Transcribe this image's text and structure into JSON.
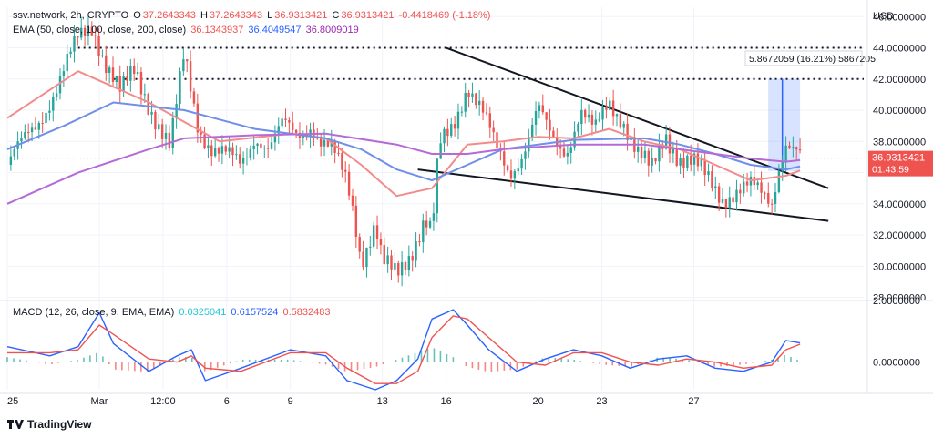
{
  "header": {
    "symbol": "ssv.network, 2h, CRYPTO",
    "open_label": "O",
    "open": "37.2643343",
    "high_label": "H",
    "high": "37.2643343",
    "low_label": "L",
    "low": "36.9313421",
    "close_label": "C",
    "close": "36.9313421",
    "change": "-0.4418469 (-1.18%)"
  },
  "ema_legend": {
    "label": "EMA (50, close, 100, close, 200, close)",
    "ema50": "36.1343937",
    "ema100": "36.4049547",
    "ema200": "36.8009019"
  },
  "macd_legend": {
    "label": "MACD (12, 26, close, 9, EMA, EMA)",
    "histogram": "0.0325041",
    "macd": "0.6157524",
    "signal": "0.5832483"
  },
  "currency": "USD",
  "current_price": "36.9313421",
  "countdown": "01:43:59",
  "measure_label": "5.8672059 (16.21%) 5867205",
  "brand": "TradingView",
  "colors": {
    "up": "#26a69a",
    "down": "#ef5350",
    "ema50": "#f28b8b",
    "ema100": "#6f8fe8",
    "ema200": "#b56bd6",
    "macd": "#2962ff",
    "signal": "#ef5350"
  },
  "chart_data": [
    {
      "type": "candlestick",
      "title": "",
      "xlabel": "",
      "ylabel": "",
      "x_ticks": [
        "25",
        "Mar",
        "12:00",
        "6",
        "9",
        "13",
        "16",
        "20",
        "23",
        "27"
      ],
      "y_ticks": [
        "28.0000000",
        "30.0000000",
        "32.0000000",
        "34.0000000",
        "36.0000000",
        "38.0000000",
        "40.0000000",
        "42.0000000",
        "44.0000000",
        "46.0000000"
      ],
      "ylim": [
        27.8,
        46.6
      ],
      "close_path": [
        [
          0,
          36.5
        ],
        [
          4,
          39
        ],
        [
          7,
          41.5
        ],
        [
          10,
          44.5
        ],
        [
          12,
          45.5
        ],
        [
          14,
          43
        ],
        [
          16,
          41
        ],
        [
          18,
          42.5
        ],
        [
          20,
          40.5
        ],
        [
          21,
          39.5
        ],
        [
          23,
          37.5
        ],
        [
          25,
          43.5
        ],
        [
          27,
          39
        ],
        [
          29,
          37.5
        ],
        [
          31,
          37
        ],
        [
          33,
          36.5
        ],
        [
          35,
          38.5
        ],
        [
          37,
          37.5
        ],
        [
          39,
          39
        ],
        [
          41,
          38.5
        ],
        [
          43,
          39.2
        ],
        [
          44,
          38
        ],
        [
          46,
          37.2
        ],
        [
          48,
          35.5
        ],
        [
          49,
          33.5
        ],
        [
          50,
          30.5
        ],
        [
          52,
          32.5
        ],
        [
          53,
          30
        ],
        [
          55,
          29.5
        ],
        [
          57,
          31
        ],
        [
          59,
          33
        ],
        [
          60,
          32
        ],
        [
          61,
          37.5
        ],
        [
          63,
          39
        ],
        [
          65,
          41.8
        ],
        [
          67,
          40
        ],
        [
          69,
          37.5
        ],
        [
          71,
          36
        ],
        [
          73,
          37.5
        ],
        [
          75,
          40
        ],
        [
          77,
          38
        ],
        [
          79,
          37.5
        ],
        [
          81,
          40
        ],
        [
          83,
          38.5
        ],
        [
          85,
          40.5
        ],
        [
          87,
          39.5
        ],
        [
          89,
          37.2
        ],
        [
          91,
          36
        ],
        [
          93,
          38.5
        ],
        [
          95,
          37
        ],
        [
          97,
          36.5
        ],
        [
          99,
          35.5
        ],
        [
          101,
          34.5
        ],
        [
          103,
          34.8
        ],
        [
          105,
          35
        ],
        [
          107,
          34.5
        ],
        [
          108,
          34.2
        ],
        [
          109,
          36.5
        ],
        [
          110,
          38
        ],
        [
          111,
          37.5
        ],
        [
          112,
          36.93
        ]
      ],
      "series": [
        {
          "name": "EMA 50",
          "values": [
            [
              0,
              39.5
            ],
            [
              10,
              42.5
            ],
            [
              20,
              40.5
            ],
            [
              30,
              38
            ],
            [
              40,
              38.5
            ],
            [
              45,
              38.2
            ],
            [
              50,
              36.5
            ],
            [
              55,
              34.5
            ],
            [
              60,
              35
            ],
            [
              65,
              37.8
            ],
            [
              70,
              38
            ],
            [
              75,
              38.3
            ],
            [
              80,
              38.2
            ],
            [
              85,
              38.8
            ],
            [
              90,
              38
            ],
            [
              95,
              37.5
            ],
            [
              100,
              36.5
            ],
            [
              105,
              35.5
            ],
            [
              110,
              35.8
            ],
            [
              112,
              36.13
            ]
          ]
        },
        {
          "name": "EMA 100",
          "values": [
            [
              0,
              37.5
            ],
            [
              8,
              39
            ],
            [
              15,
              40.5
            ],
            [
              25,
              40
            ],
            [
              35,
              38.8
            ],
            [
              45,
              38.2
            ],
            [
              50,
              37.5
            ],
            [
              55,
              36.2
            ],
            [
              60,
              35.5
            ],
            [
              65,
              36.5
            ],
            [
              70,
              37.5
            ],
            [
              80,
              38.1
            ],
            [
              90,
              38.2
            ],
            [
              95,
              37.8
            ],
            [
              100,
              37.2
            ],
            [
              105,
              36.5
            ],
            [
              110,
              36.2
            ],
            [
              112,
              36.4
            ]
          ]
        },
        {
          "name": "EMA 200",
          "values": [
            [
              0,
              34
            ],
            [
              10,
              36
            ],
            [
              20,
              37.5
            ],
            [
              25,
              38.2
            ],
            [
              35,
              38.4
            ],
            [
              45,
              38.5
            ],
            [
              55,
              37.8
            ],
            [
              60,
              37.2
            ],
            [
              65,
              37.2
            ],
            [
              70,
              37.5
            ],
            [
              80,
              37.8
            ],
            [
              90,
              37.8
            ],
            [
              95,
              37.5
            ],
            [
              100,
              37.2
            ],
            [
              105,
              36.9
            ],
            [
              110,
              36.7
            ],
            [
              112,
              36.8
            ]
          ]
        }
      ],
      "annotations": {
        "horizontal_levels": [
          44.0,
          42.0
        ],
        "wedge_upper": [
          [
            62,
            44
          ],
          [
            116,
            35
          ]
        ],
        "wedge_lower": [
          [
            58,
            36.2
          ],
          [
            116,
            32.9
          ]
        ],
        "measure_range": [
          36.1,
          42.0
        ]
      }
    },
    {
      "type": "line",
      "title": "",
      "y_ticks": [
        "0.0000000",
        "2.0000000"
      ],
      "ylim": [
        -0.9,
        2.0
      ],
      "series": [
        {
          "name": "MACD",
          "values": [
            [
              0,
              0.5
            ],
            [
              6,
              0.2
            ],
            [
              10,
              0.5
            ],
            [
              13,
              1.6
            ],
            [
              15,
              0.6
            ],
            [
              20,
              -0.3
            ],
            [
              24,
              0.2
            ],
            [
              26,
              0.4
            ],
            [
              28,
              -0.6
            ],
            [
              33,
              -0.2
            ],
            [
              40,
              0.4
            ],
            [
              45,
              0.2
            ],
            [
              48,
              -0.6
            ],
            [
              52,
              -0.9
            ],
            [
              55,
              -0.6
            ],
            [
              58,
              0.1
            ],
            [
              60,
              1.4
            ],
            [
              63,
              1.7
            ],
            [
              65,
              1.2
            ],
            [
              68,
              0.4
            ],
            [
              72,
              -0.3
            ],
            [
              76,
              0.1
            ],
            [
              80,
              0.4
            ],
            [
              84,
              0.2
            ],
            [
              88,
              -0.2
            ],
            [
              92,
              0.1
            ],
            [
              96,
              0.2
            ],
            [
              100,
              -0.2
            ],
            [
              104,
              -0.3
            ],
            [
              108,
              0.0
            ],
            [
              110,
              0.7
            ],
            [
              112,
              0.62
            ]
          ]
        },
        {
          "name": "Signal",
          "values": [
            [
              0,
              0.3
            ],
            [
              6,
              0.3
            ],
            [
              10,
              0.4
            ],
            [
              13,
              1.2
            ],
            [
              15,
              0.9
            ],
            [
              20,
              0.1
            ],
            [
              24,
              0.0
            ],
            [
              26,
              0.2
            ],
            [
              28,
              -0.2
            ],
            [
              33,
              -0.3
            ],
            [
              40,
              0.3
            ],
            [
              45,
              0.3
            ],
            [
              48,
              -0.2
            ],
            [
              52,
              -0.7
            ],
            [
              55,
              -0.7
            ],
            [
              58,
              -0.3
            ],
            [
              60,
              0.8
            ],
            [
              63,
              1.5
            ],
            [
              65,
              1.4
            ],
            [
              68,
              0.8
            ],
            [
              72,
              0.0
            ],
            [
              76,
              -0.1
            ],
            [
              80,
              0.3
            ],
            [
              84,
              0.3
            ],
            [
              88,
              0.0
            ],
            [
              92,
              -0.1
            ],
            [
              96,
              0.1
            ],
            [
              100,
              0.0
            ],
            [
              104,
              -0.2
            ],
            [
              108,
              -0.1
            ],
            [
              110,
              0.4
            ],
            [
              112,
              0.58
            ]
          ]
        }
      ]
    }
  ]
}
